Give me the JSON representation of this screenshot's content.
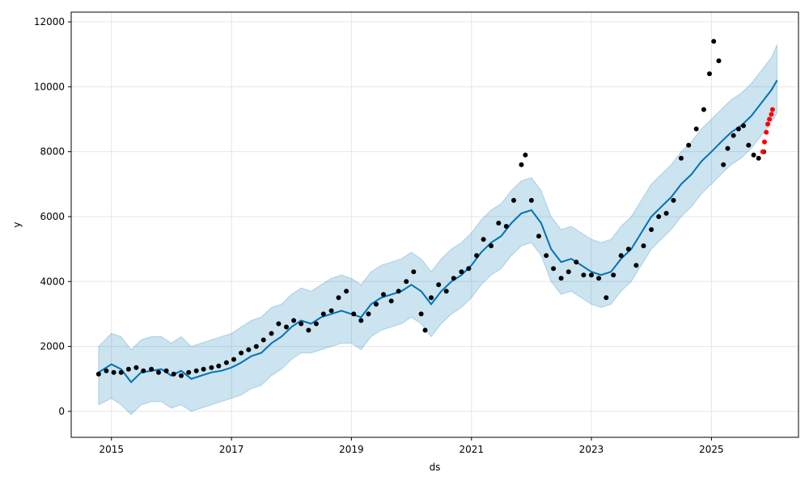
{
  "chart_data": {
    "type": "line",
    "title": "",
    "xlabel": "ds",
    "ylabel": "y",
    "xlim": [
      "2014-05-01",
      "2026-06-15"
    ],
    "ylim": [
      -800,
      12300
    ],
    "grid": true,
    "x_ticks": [
      "2015",
      "2017",
      "2019",
      "2021",
      "2023",
      "2025"
    ],
    "y_ticks": [
      0,
      2000,
      4000,
      6000,
      8000,
      10000,
      12000
    ],
    "colors": {
      "forecast_line": "#0072B2",
      "uncertainty_band": "#0072B2",
      "observed_points": "#000000",
      "recent_points": "#ff0000",
      "grid": "#e6e6e6"
    },
    "series": [
      {
        "kind": "forecast",
        "x": [
          "2014-10-15",
          "2015-01-01",
          "2015-03-01",
          "2015-05-01",
          "2015-07-01",
          "2015-09-01",
          "2015-11-01",
          "2016-01-01",
          "2016-03-01",
          "2016-05-01",
          "2016-07-01",
          "2016-09-01",
          "2016-11-01",
          "2017-01-01",
          "2017-03-01",
          "2017-05-01",
          "2017-07-01",
          "2017-09-01",
          "2017-11-01",
          "2018-01-01",
          "2018-03-01",
          "2018-05-01",
          "2018-07-01",
          "2018-09-01",
          "2018-11-01",
          "2019-01-01",
          "2019-03-01",
          "2019-05-01",
          "2019-07-01",
          "2019-09-01",
          "2019-11-01",
          "2020-01-01",
          "2020-03-01",
          "2020-05-01",
          "2020-07-01",
          "2020-09-01",
          "2020-11-01",
          "2021-01-01",
          "2021-03-01",
          "2021-05-01",
          "2021-07-01",
          "2021-09-01",
          "2021-11-01",
          "2022-01-01",
          "2022-03-01",
          "2022-05-01",
          "2022-07-01",
          "2022-09-01",
          "2022-11-01",
          "2023-01-01",
          "2023-03-01",
          "2023-05-01",
          "2023-07-01",
          "2023-09-01",
          "2023-11-01",
          "2024-01-01",
          "2024-03-01",
          "2024-05-01",
          "2024-07-01",
          "2024-09-01",
          "2024-11-01",
          "2025-01-01",
          "2025-03-01",
          "2025-05-01",
          "2025-07-01",
          "2025-09-01",
          "2025-11-01",
          "2026-01-01",
          "2026-02-05"
        ],
        "yhat": [
          1200,
          1450,
          1300,
          900,
          1200,
          1250,
          1300,
          1100,
          1250,
          1000,
          1100,
          1200,
          1250,
          1350,
          1500,
          1700,
          1800,
          2100,
          2300,
          2600,
          2800,
          2700,
          2900,
          3000,
          3100,
          3000,
          2900,
          3300,
          3500,
          3600,
          3700,
          3900,
          3700,
          3300,
          3700,
          4000,
          4200,
          4500,
          4900,
          5200,
          5400,
          5800,
          6100,
          6200,
          5800,
          5000,
          4600,
          4700,
          4500,
          4300,
          4200,
          4300,
          4700,
          5000,
          5500,
          6000,
          6300,
          6600,
          7000,
          7300,
          7700,
          8000,
          8300,
          8600,
          8800,
          9100,
          9500,
          9900,
          10200
        ],
        "lower": [
          200,
          400,
          200,
          -100,
          200,
          300,
          300,
          100,
          200,
          0,
          100,
          200,
          300,
          400,
          500,
          700,
          800,
          1100,
          1300,
          1600,
          1800,
          1800,
          1900,
          2000,
          2100,
          2100,
          1900,
          2300,
          2500,
          2600,
          2700,
          2900,
          2700,
          2300,
          2700,
          3000,
          3200,
          3500,
          3900,
          4200,
          4400,
          4800,
          5100,
          5200,
          4800,
          4000,
          3600,
          3700,
          3500,
          3300,
          3200,
          3300,
          3700,
          4000,
          4500,
          5000,
          5300,
          5600,
          6000,
          6300,
          6700,
          7000,
          7300,
          7600,
          7800,
          8100,
          8500,
          8900,
          9200
        ],
        "upper": [
          2000,
          2400,
          2300,
          1900,
          2200,
          2300,
          2300,
          2100,
          2300,
          2000,
          2100,
          2200,
          2300,
          2400,
          2600,
          2800,
          2900,
          3200,
          3300,
          3600,
          3800,
          3700,
          3900,
          4100,
          4200,
          4100,
          3900,
          4300,
          4500,
          4600,
          4700,
          4900,
          4700,
          4300,
          4700,
          5000,
          5200,
          5500,
          5900,
          6200,
          6400,
          6800,
          7100,
          7200,
          6800,
          6000,
          5600,
          5700,
          5500,
          5300,
          5200,
          5300,
          5700,
          6000,
          6500,
          7000,
          7300,
          7600,
          8000,
          8300,
          8700,
          9000,
          9300,
          9600,
          9800,
          10100,
          10500,
          10900,
          11300
        ]
      },
      {
        "kind": "observed",
        "x": [
          "2014-10-15",
          "2014-12-01",
          "2015-01-15",
          "2015-03-01",
          "2015-04-15",
          "2015-06-01",
          "2015-07-15",
          "2015-09-01",
          "2015-10-15",
          "2015-12-01",
          "2016-01-15",
          "2016-03-01",
          "2016-04-15",
          "2016-06-01",
          "2016-07-15",
          "2016-09-01",
          "2016-10-15",
          "2016-12-01",
          "2017-01-15",
          "2017-03-01",
          "2017-04-15",
          "2017-06-01",
          "2017-07-15",
          "2017-09-01",
          "2017-10-15",
          "2017-12-01",
          "2018-01-15",
          "2018-03-01",
          "2018-04-15",
          "2018-06-01",
          "2018-07-15",
          "2018-09-01",
          "2018-10-15",
          "2018-12-01",
          "2019-01-15",
          "2019-03-01",
          "2019-04-15",
          "2019-06-01",
          "2019-07-15",
          "2019-09-01",
          "2019-10-15",
          "2019-12-01",
          "2020-01-15",
          "2020-03-01",
          "2020-03-25",
          "2020-05-01",
          "2020-06-15",
          "2020-08-01",
          "2020-09-15",
          "2020-11-01",
          "2020-12-15",
          "2021-02-01",
          "2021-03-15",
          "2021-05-01",
          "2021-06-15",
          "2021-08-01",
          "2021-09-15",
          "2021-11-01",
          "2021-11-25",
          "2022-01-01",
          "2022-02-15",
          "2022-04-01",
          "2022-05-15",
          "2022-07-01",
          "2022-08-15",
          "2022-10-01",
          "2022-11-15",
          "2023-01-01",
          "2023-02-15",
          "2023-04-01",
          "2023-05-15",
          "2023-07-01",
          "2023-08-15",
          "2023-10-01",
          "2023-11-15",
          "2024-01-01",
          "2024-02-15",
          "2024-04-01",
          "2024-05-15",
          "2024-07-01",
          "2024-08-15",
          "2024-10-01",
          "2024-11-15",
          "2024-12-20",
          "2025-01-15",
          "2025-02-15",
          "2025-03-15",
          "2025-04-10",
          "2025-05-15",
          "2025-06-15",
          "2025-07-15",
          "2025-08-15",
          "2025-09-15",
          "2025-10-15",
          "2025-11-15"
        ],
        "y": [
          1150,
          1250,
          1200,
          1200,
          1300,
          1350,
          1250,
          1300,
          1200,
          1250,
          1150,
          1100,
          1200,
          1250,
          1300,
          1350,
          1400,
          1500,
          1600,
          1800,
          1900,
          2000,
          2200,
          2400,
          2700,
          2600,
          2800,
          2700,
          2500,
          2700,
          3000,
          3100,
          3500,
          3700,
          3000,
          2800,
          3000,
          3300,
          3600,
          3400,
          3700,
          4000,
          4300,
          3000,
          2500,
          3500,
          3900,
          3700,
          4100,
          4300,
          4400,
          4800,
          5300,
          5100,
          5800,
          5700,
          6500,
          7600,
          7900,
          6500,
          5400,
          4800,
          4400,
          4100,
          4300,
          4600,
          4200,
          4200,
          4100,
          3500,
          4200,
          4800,
          5000,
          4500,
          5100,
          5600,
          6000,
          6100,
          6500,
          7800,
          8200,
          8700,
          9300,
          10400,
          11400,
          10800,
          7600,
          8100,
          8500,
          8700,
          8800,
          8200,
          7900,
          7800,
          8000
        ],
        "color": "#000000"
      },
      {
        "kind": "recent_observed",
        "x": [
          "2025-11-10",
          "2025-11-20",
          "2025-12-01",
          "2025-12-10",
          "2025-12-20",
          "2026-01-01",
          "2026-01-08"
        ],
        "y": [
          8000,
          8300,
          8600,
          8850,
          9000,
          9150,
          9300
        ],
        "color": "#ff0000"
      }
    ]
  }
}
